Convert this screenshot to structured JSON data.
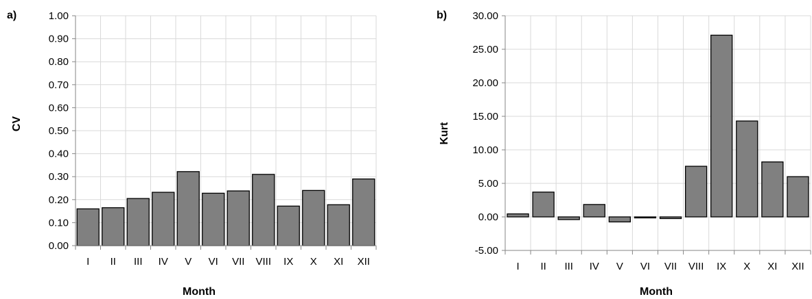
{
  "chart_data": [
    {
      "type": "bar",
      "panel_label": "a)",
      "title": "",
      "xlabel": "Month",
      "ylabel": "CV",
      "categories": [
        "I",
        "II",
        "III",
        "IV",
        "V",
        "VI",
        "VII",
        "VIII",
        "IX",
        "X",
        "XI",
        "XII"
      ],
      "values": [
        0.16,
        0.165,
        0.205,
        0.232,
        0.322,
        0.228,
        0.238,
        0.31,
        0.172,
        0.24,
        0.178,
        0.29
      ],
      "ylim": [
        0,
        1
      ],
      "yticks": [
        "0.00",
        "0.10",
        "0.20",
        "0.30",
        "0.40",
        "0.50",
        "0.60",
        "0.70",
        "0.80",
        "0.90",
        "1.00"
      ],
      "grid": true,
      "legend": "none"
    },
    {
      "type": "bar",
      "panel_label": "b)",
      "title": "",
      "xlabel": "Month",
      "ylabel": "Kurt",
      "categories": [
        "I",
        "II",
        "III",
        "IV",
        "V",
        "VI",
        "VII",
        "VIII",
        "IX",
        "X",
        "XI",
        "XII"
      ],
      "values": [
        0.45,
        3.7,
        -0.4,
        1.85,
        -0.75,
        -0.15,
        -0.25,
        7.55,
        27.1,
        14.3,
        8.2,
        6.0
      ],
      "ylim": [
        -5,
        30
      ],
      "yticks": [
        "-5.00",
        "0.00",
        "5.00",
        "10.00",
        "15.00",
        "20.00",
        "25.00",
        "30.00"
      ],
      "grid": true,
      "legend": "none"
    }
  ]
}
